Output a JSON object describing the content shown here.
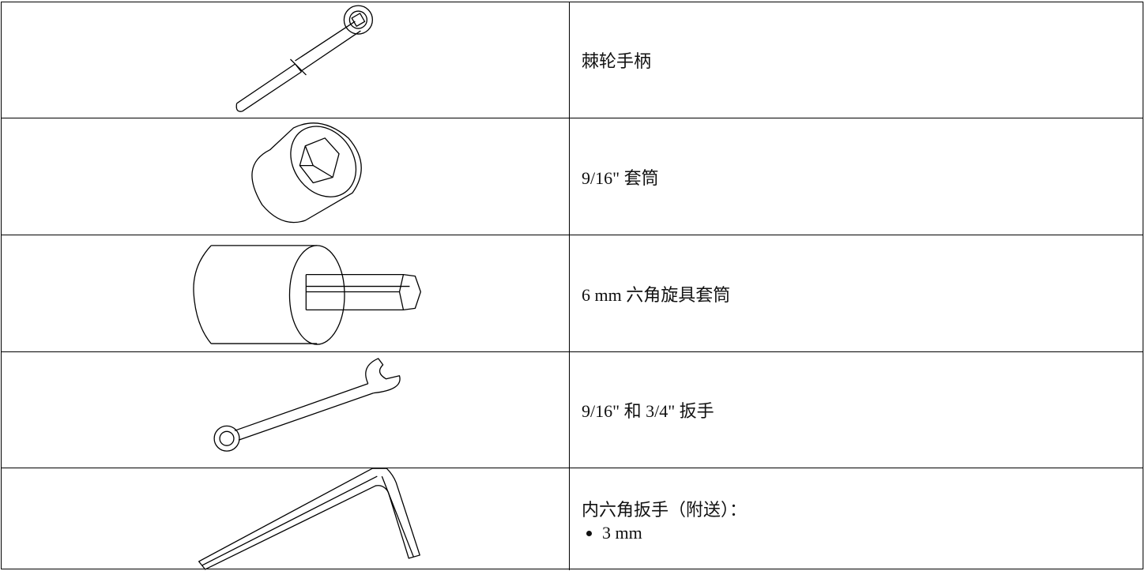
{
  "table": {
    "rows": [
      {
        "label": "棘轮手柄"
      },
      {
        "label": "9/16\" 套筒"
      },
      {
        "label": "6 mm 六角旋具套筒"
      },
      {
        "label": "9/16\" 和 3/4\" 扳手"
      },
      {
        "label": "内六角扳手（附送）：",
        "items": [
          "3 mm"
        ]
      }
    ]
  }
}
